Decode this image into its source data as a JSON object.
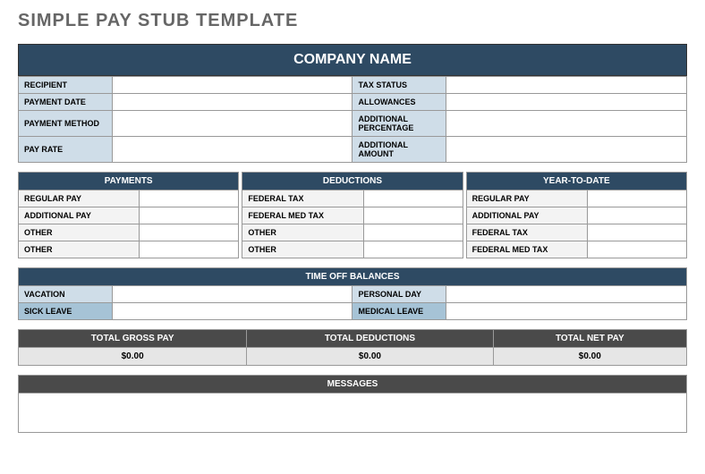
{
  "page_title": "SIMPLE PAY STUB TEMPLATE",
  "company_name": "COMPANY NAME",
  "colors": {
    "header_blue": "#2e4a63",
    "label_lightblue": "#cfdde8",
    "label_medblue": "#a6c3d6",
    "totals_darkgray": "#4a4a4a",
    "totals_lightgray": "#e6e6e6",
    "row_gray": "#f3f3f3"
  },
  "info_rows": [
    {
      "left_label": "RECIPIENT",
      "left_value": "",
      "right_label": "TAX STATUS",
      "right_value": ""
    },
    {
      "left_label": "PAYMENT DATE",
      "left_value": "",
      "right_label": "ALLOWANCES",
      "right_value": ""
    },
    {
      "left_label": "PAYMENT METHOD",
      "left_value": "",
      "right_label": "ADDITIONAL PERCENTAGE",
      "right_value": ""
    },
    {
      "left_label": "PAY RATE",
      "left_value": "",
      "right_label": "ADDITIONAL AMOUNT",
      "right_value": ""
    }
  ],
  "sections": {
    "payments": {
      "header": "PAYMENTS",
      "rows": [
        {
          "label": "REGULAR PAY",
          "value": ""
        },
        {
          "label": "ADDITIONAL PAY",
          "value": ""
        },
        {
          "label": "OTHER",
          "value": ""
        },
        {
          "label": "OTHER",
          "value": ""
        }
      ]
    },
    "deductions": {
      "header": "DEDUCTIONS",
      "rows": [
        {
          "label": "FEDERAL TAX",
          "value": ""
        },
        {
          "label": "FEDERAL MED TAX",
          "value": ""
        },
        {
          "label": "OTHER",
          "value": ""
        },
        {
          "label": "OTHER",
          "value": ""
        }
      ]
    },
    "ytd": {
      "header": "YEAR-TO-DATE",
      "rows": [
        {
          "label": "REGULAR PAY",
          "value": ""
        },
        {
          "label": "ADDITIONAL PAY",
          "value": ""
        },
        {
          "label": "FEDERAL TAX",
          "value": ""
        },
        {
          "label": "FEDERAL MED TAX",
          "value": ""
        }
      ]
    }
  },
  "timeoff": {
    "header": "TIME OFF BALANCES",
    "rows": [
      {
        "left_label": "VACATION",
        "left_value": "",
        "right_label": "PERSONAL DAY",
        "right_value": "",
        "left_class": "to-label-a",
        "right_class": "to-label-a"
      },
      {
        "left_label": "SICK LEAVE",
        "left_value": "",
        "right_label": "MEDICAL LEAVE",
        "right_value": "",
        "left_class": "to-label-b",
        "right_class": "to-label-c"
      }
    ]
  },
  "totals": {
    "gross_label": "TOTAL GROSS PAY",
    "gross_value": "$0.00",
    "deductions_label": "TOTAL DEDUCTIONS",
    "deductions_value": "$0.00",
    "net_label": "TOTAL NET PAY",
    "net_value": "$0.00"
  },
  "messages": {
    "header": "MESSAGES",
    "body": ""
  }
}
